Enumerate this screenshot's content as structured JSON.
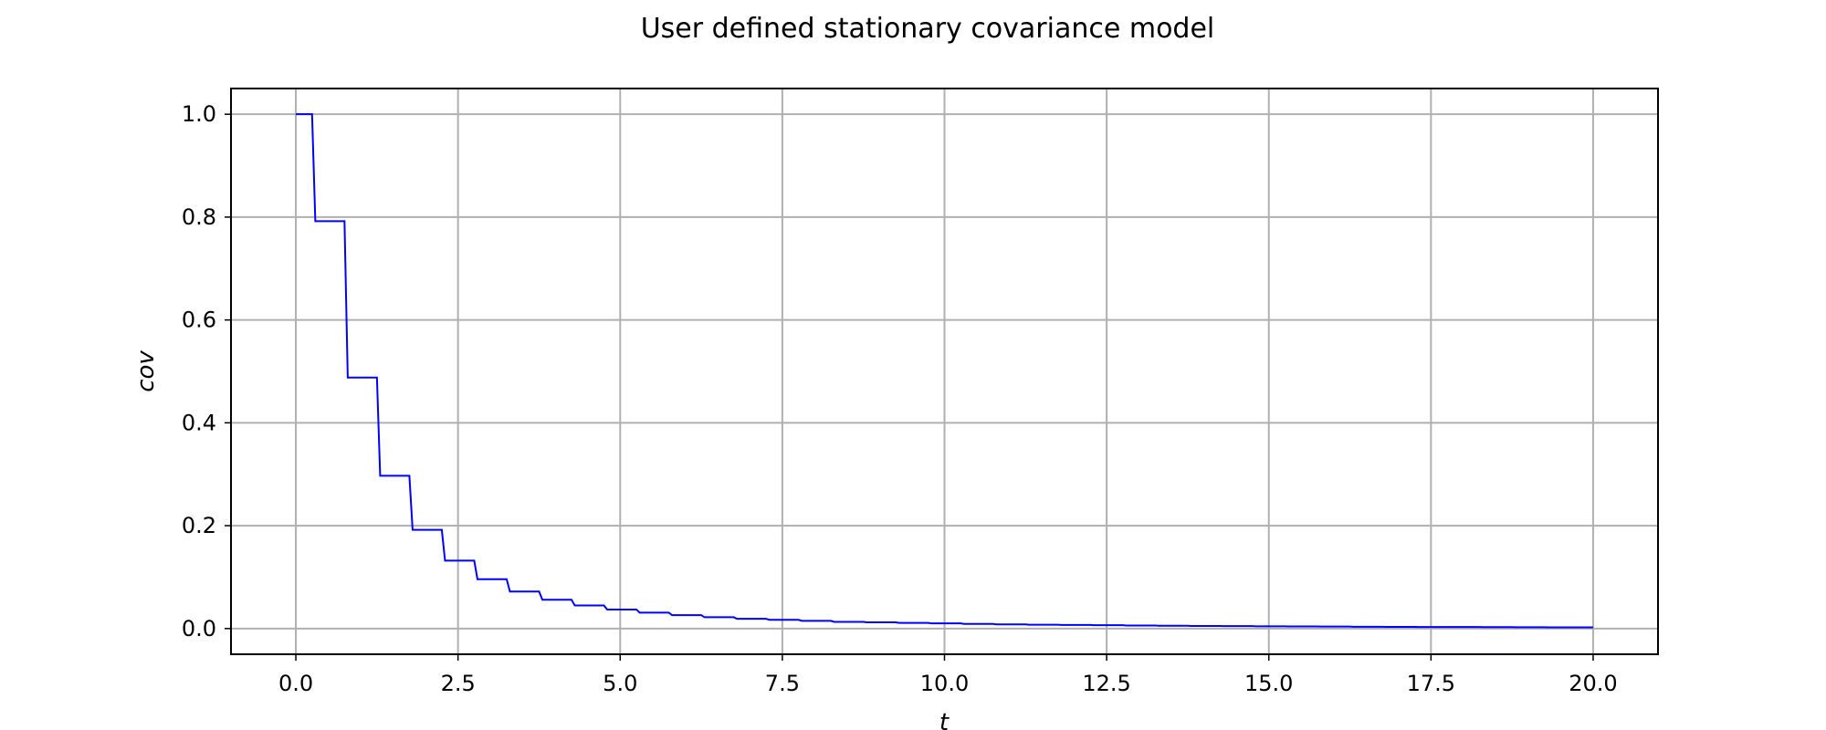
{
  "chart_data": {
    "type": "line",
    "title": "User defined stationary covariance model",
    "xlabel": "t",
    "ylabel": "cov",
    "xlim": [
      -1.0,
      21.0
    ],
    "ylim": [
      -0.05,
      1.05
    ],
    "xticks": [
      0.0,
      2.5,
      5.0,
      7.5,
      10.0,
      12.5,
      15.0,
      17.5,
      20.0
    ],
    "xtick_labels": [
      "0.0",
      "2.5",
      "5.0",
      "7.5",
      "10.0",
      "12.5",
      "15.0",
      "17.5",
      "20.0"
    ],
    "yticks": [
      0.0,
      0.2,
      0.4,
      0.6,
      0.8,
      1.0
    ],
    "ytick_labels": [
      "0.0",
      "0.2",
      "0.4",
      "0.6",
      "0.8",
      "1.0"
    ],
    "grid": true,
    "series": [
      {
        "color": "#0000ff",
        "x": [
          0.0,
          0.25,
          0.3,
          0.75,
          0.8,
          1.25,
          1.3,
          1.75,
          1.8,
          2.25,
          2.3,
          2.75,
          2.8,
          3.25,
          3.3,
          3.75,
          3.8,
          4.25,
          4.3,
          4.75,
          4.8,
          5.25,
          5.3,
          5.75,
          5.8,
          6.25,
          6.3,
          6.75,
          6.8,
          7.25,
          7.3,
          7.75,
          7.8,
          8.25,
          8.3,
          8.75,
          8.8,
          9.25,
          9.3,
          9.75,
          9.8,
          10.25,
          10.3,
          10.75,
          10.8,
          11.25,
          11.3,
          11.75,
          11.8,
          12.25,
          12.3,
          12.75,
          12.8,
          13.25,
          13.3,
          13.75,
          13.8,
          14.25,
          14.3,
          14.75,
          14.8,
          15.25,
          15.3,
          15.75,
          15.8,
          16.25,
          16.3,
          16.75,
          16.8,
          17.25,
          17.3,
          17.75,
          17.8,
          18.25,
          18.3,
          18.75,
          18.8,
          19.25,
          19.3,
          20.0
        ],
        "y": [
          1.0,
          1.0,
          0.792,
          0.792,
          0.488,
          0.488,
          0.297,
          0.297,
          0.192,
          0.192,
          0.132,
          0.132,
          0.096,
          0.096,
          0.072,
          0.072,
          0.056,
          0.056,
          0.045,
          0.045,
          0.037,
          0.037,
          0.031,
          0.031,
          0.026,
          0.026,
          0.022,
          0.022,
          0.019,
          0.019,
          0.017,
          0.017,
          0.015,
          0.015,
          0.013,
          0.013,
          0.012,
          0.012,
          0.011,
          0.011,
          0.01,
          0.01,
          0.009,
          0.009,
          0.008,
          0.008,
          0.0075,
          0.0075,
          0.007,
          0.007,
          0.0065,
          0.0065,
          0.006,
          0.006,
          0.0055,
          0.0055,
          0.005,
          0.005,
          0.0047,
          0.0047,
          0.0044,
          0.0044,
          0.0041,
          0.0041,
          0.0038,
          0.0038,
          0.0035,
          0.0035,
          0.0033,
          0.0033,
          0.0031,
          0.0031,
          0.0029,
          0.0029,
          0.0027,
          0.0027,
          0.0025,
          0.0025,
          0.0024,
          0.0024
        ]
      }
    ]
  }
}
